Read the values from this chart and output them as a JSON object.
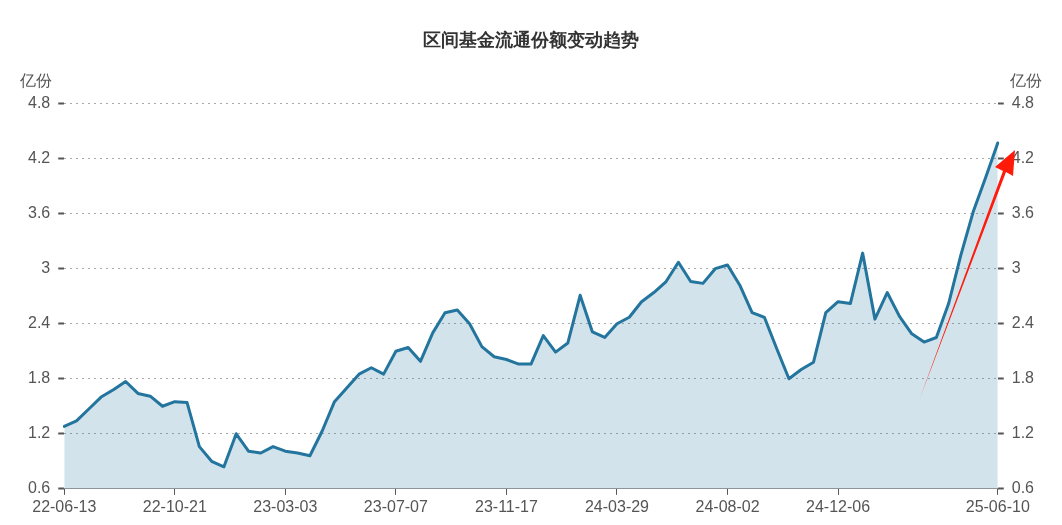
{
  "chart_data": {
    "type": "area",
    "title": "区间基金流通份额变动趋势",
    "ylabel": "亿份",
    "y2label": "亿份",
    "categories": [
      "22-06-13",
      null,
      null,
      null,
      null,
      null,
      null,
      null,
      null,
      "22-10-21",
      null,
      null,
      null,
      null,
      null,
      null,
      null,
      null,
      "23-03-03",
      null,
      null,
      null,
      null,
      null,
      null,
      null,
      null,
      "23-07-07",
      null,
      null,
      null,
      null,
      null,
      null,
      null,
      null,
      "23-11-17",
      null,
      null,
      null,
      null,
      null,
      null,
      null,
      null,
      "24-03-29",
      null,
      null,
      null,
      null,
      null,
      null,
      null,
      null,
      "24-08-02",
      null,
      null,
      null,
      null,
      null,
      null,
      null,
      null,
      "24-12-06",
      null,
      null,
      null,
      null,
      null,
      null,
      null,
      null,
      null,
      null,
      null,
      null,
      "25-06-10"
    ],
    "series": [
      {
        "color": "#23759e",
        "values": [
          1.28,
          1.34,
          1.47,
          1.6,
          1.68,
          1.77,
          1.64,
          1.61,
          1.5,
          1.55,
          1.54,
          1.06,
          0.9,
          0.84,
          1.2,
          1.01,
          0.99,
          1.06,
          1.01,
          0.99,
          0.96,
          1.23,
          1.55,
          1.7,
          1.85,
          1.92,
          1.85,
          2.1,
          2.14,
          1.99,
          2.3,
          2.52,
          2.55,
          2.4,
          2.15,
          2.04,
          2.01,
          1.96,
          1.96,
          2.27,
          2.09,
          2.19,
          2.71,
          2.31,
          2.25,
          2.4,
          2.47,
          2.64,
          2.74,
          2.86,
          3.07,
          2.86,
          2.84,
          3,
          3.04,
          2.82,
          2.52,
          2.47,
          2.13,
          1.8,
          1.9,
          1.98,
          2.52,
          2.64,
          2.62,
          3.17,
          2.45,
          2.74,
          2.48,
          2.29,
          2.2,
          2.25,
          2.62,
          3.15,
          3.62,
          3.99,
          4.37
        ]
      }
    ],
    "ylim": [
      0.6,
      4.8
    ],
    "yticks": [
      0.6,
      1.2,
      1.8,
      2.4,
      3,
      3.6,
      4.2,
      4.8
    ],
    "y2lim": [
      0.6,
      4.8
    ],
    "y2ticks": [
      0.6,
      1.2,
      1.8,
      2.4,
      3,
      3.6,
      4.2,
      4.8
    ],
    "grid": "y",
    "legend": false,
    "marker": "none",
    "line_style": "solid"
  }
}
